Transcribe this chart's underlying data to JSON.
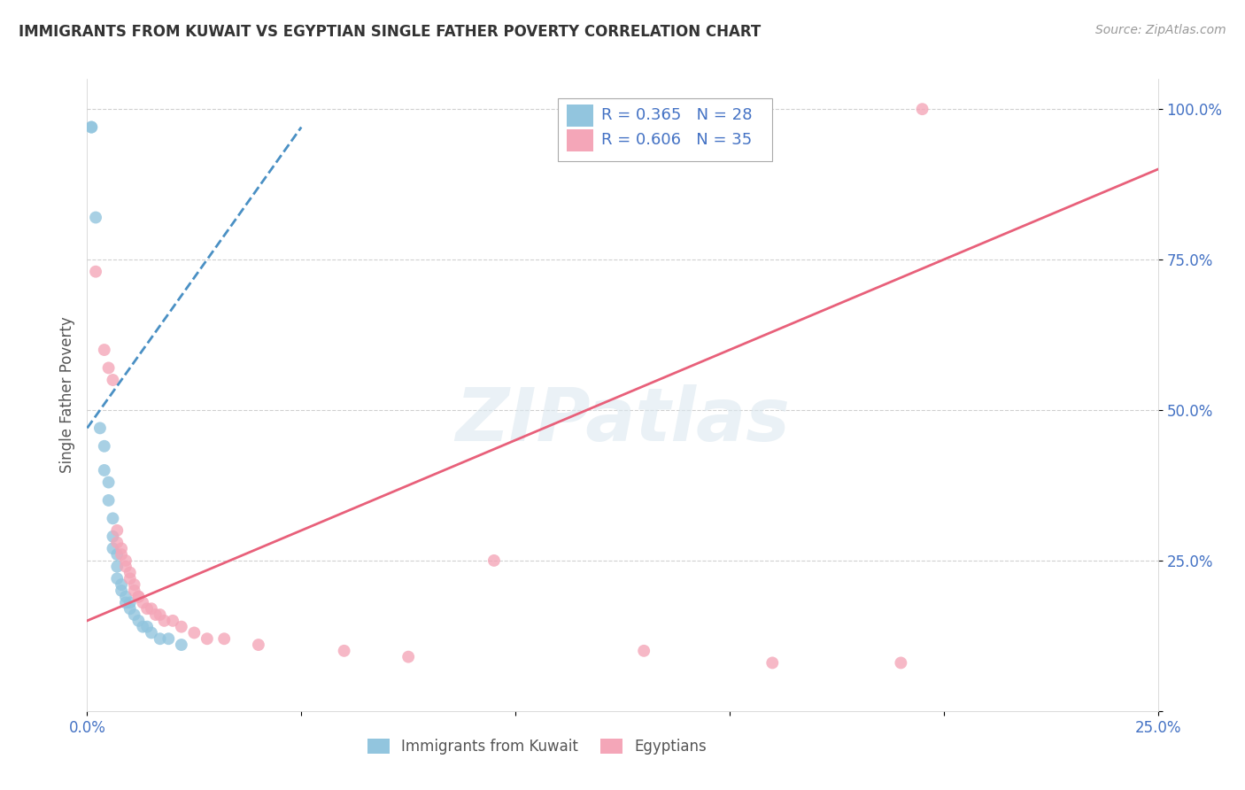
{
  "title": "IMMIGRANTS FROM KUWAIT VS EGYPTIAN SINGLE FATHER POVERTY CORRELATION CHART",
  "source": "Source: ZipAtlas.com",
  "ylabel": "Single Father Poverty",
  "xlim": [
    0,
    0.25
  ],
  "ylim": [
    0,
    1.05
  ],
  "blue_R": 0.365,
  "blue_N": 28,
  "pink_R": 0.606,
  "pink_N": 35,
  "blue_color": "#92c5de",
  "pink_color": "#f4a6b8",
  "blue_line_color": "#4a90c4",
  "pink_line_color": "#e8607a",
  "watermark": "ZIPatlas",
  "blue_x": [
    0.001,
    0.001,
    0.002,
    0.003,
    0.004,
    0.004,
    0.005,
    0.005,
    0.006,
    0.006,
    0.006,
    0.007,
    0.007,
    0.007,
    0.008,
    0.008,
    0.009,
    0.009,
    0.01,
    0.01,
    0.011,
    0.012,
    0.013,
    0.014,
    0.015,
    0.017,
    0.019,
    0.022
  ],
  "blue_y": [
    0.97,
    0.97,
    0.82,
    0.47,
    0.44,
    0.4,
    0.38,
    0.35,
    0.32,
    0.29,
    0.27,
    0.26,
    0.24,
    0.22,
    0.21,
    0.2,
    0.19,
    0.18,
    0.18,
    0.17,
    0.16,
    0.15,
    0.14,
    0.14,
    0.13,
    0.12,
    0.12,
    0.11
  ],
  "pink_x": [
    0.195,
    0.002,
    0.004,
    0.005,
    0.006,
    0.007,
    0.007,
    0.008,
    0.008,
    0.009,
    0.009,
    0.01,
    0.01,
    0.011,
    0.011,
    0.012,
    0.012,
    0.013,
    0.014,
    0.015,
    0.016,
    0.017,
    0.018,
    0.02,
    0.022,
    0.025,
    0.028,
    0.032,
    0.04,
    0.06,
    0.075,
    0.095,
    0.13,
    0.16,
    0.19
  ],
  "pink_y": [
    1.0,
    0.73,
    0.6,
    0.57,
    0.55,
    0.3,
    0.28,
    0.27,
    0.26,
    0.25,
    0.24,
    0.23,
    0.22,
    0.21,
    0.2,
    0.19,
    0.19,
    0.18,
    0.17,
    0.17,
    0.16,
    0.16,
    0.15,
    0.15,
    0.14,
    0.13,
    0.12,
    0.12,
    0.11,
    0.1,
    0.09,
    0.25,
    0.1,
    0.08,
    0.08
  ],
  "blue_trend_x": [
    0.0,
    0.05
  ],
  "blue_trend_y": [
    0.47,
    0.97
  ],
  "pink_trend_x": [
    0.0,
    0.25
  ],
  "pink_trend_y": [
    0.15,
    0.9
  ]
}
